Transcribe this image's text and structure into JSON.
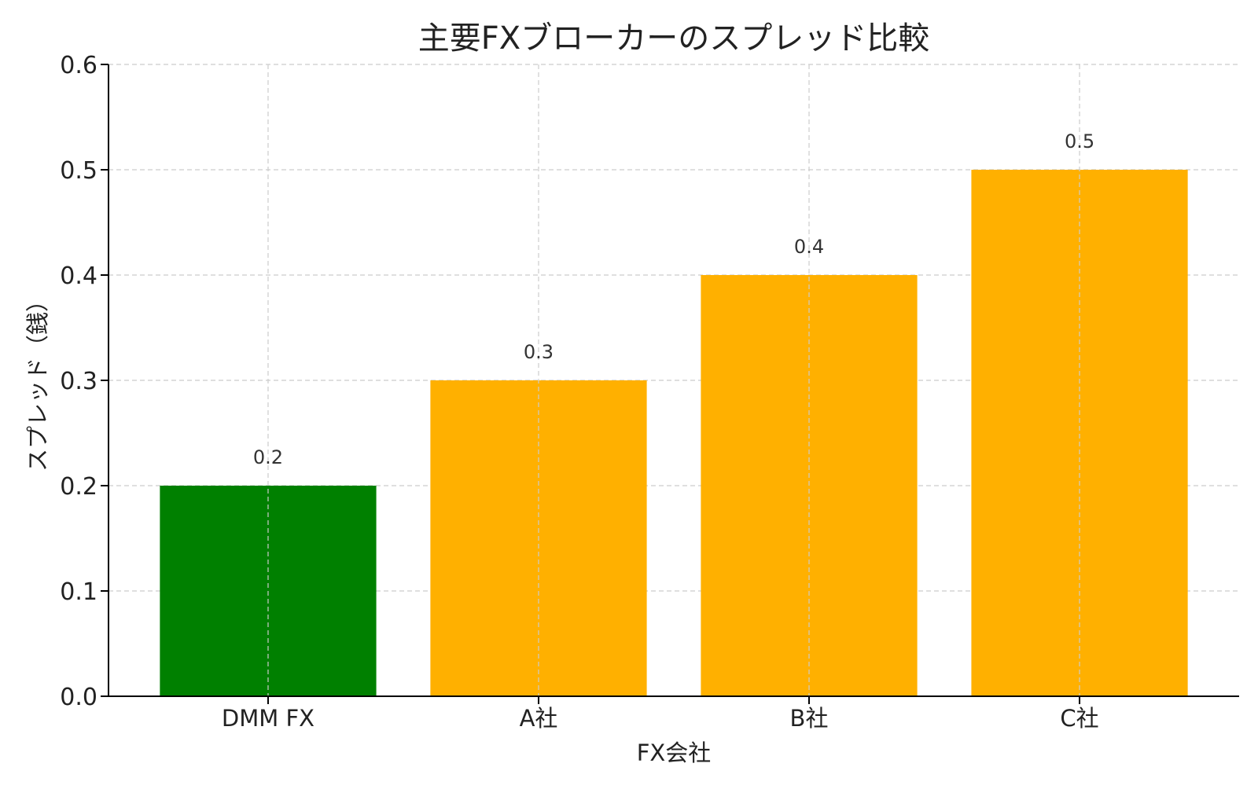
{
  "chart_data": {
    "type": "bar",
    "title": "主要FXブローカーのスプレッド比較",
    "xlabel": "FX会社",
    "ylabel": "スプレッド（銭）",
    "categories": [
      "DMM FX",
      "A社",
      "B社",
      "C社"
    ],
    "values": [
      0.2,
      0.3,
      0.4,
      0.5
    ],
    "data_labels": [
      "0.2",
      "0.3",
      "0.4",
      "0.5"
    ],
    "bar_colors": [
      "#008000",
      "#FFB000",
      "#FFB000",
      "#FFB000"
    ],
    "ylim": [
      0,
      0.6
    ],
    "yticks": [
      0.0,
      0.1,
      0.2,
      0.3,
      0.4,
      0.5,
      0.6
    ],
    "ytick_labels": [
      "0.0",
      "0.1",
      "0.2",
      "0.3",
      "0.4",
      "0.5",
      "0.6"
    ],
    "grid": true
  }
}
